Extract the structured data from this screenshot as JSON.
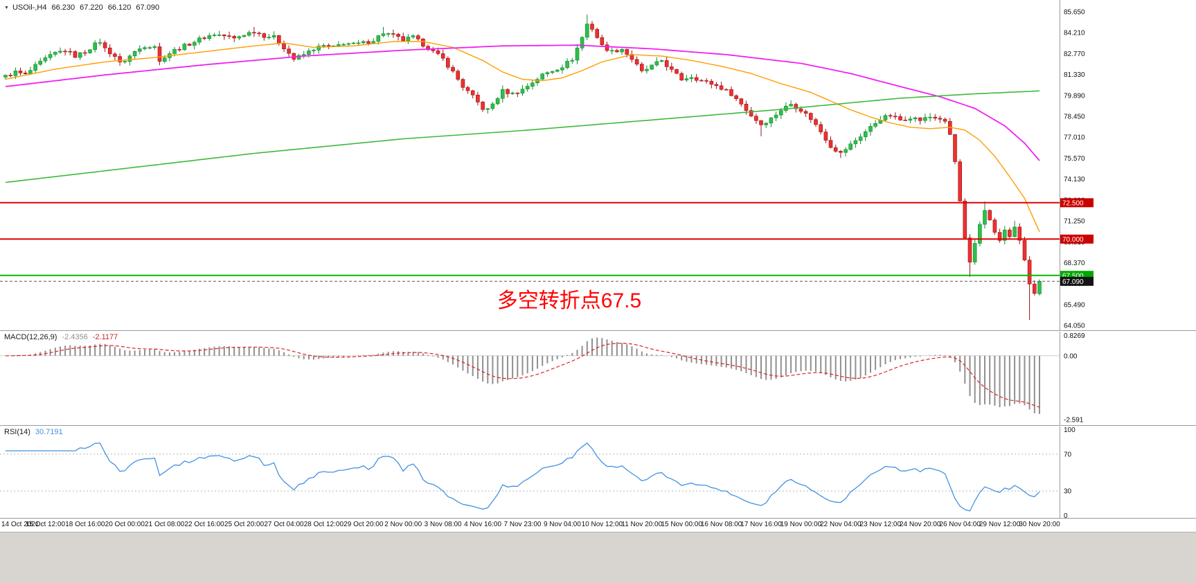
{
  "header": {
    "collapse_icon": "▼",
    "symbol": "USOil-,H4",
    "open": "66.230",
    "high": "67.220",
    "low": "66.120",
    "close": "67.090"
  },
  "annotation": {
    "text": "多空转折点67.5",
    "color": "#ff0000"
  },
  "colors": {
    "background": "#ffffff",
    "bull": "#2fbe4b",
    "bull_border": "#128a30",
    "bear": "#ee3030",
    "bear_border": "#991111",
    "panel_border": "#9a9a9a",
    "axis_text": "#111111",
    "bottom_strip": "#d8d5d0"
  },
  "price_axis": {
    "labels": [
      "85.650",
      "84.210",
      "82.770",
      "81.330",
      "79.890",
      "78.450",
      "77.010",
      "75.570",
      "74.130",
      "72.690",
      "71.250",
      "69.810",
      "68.370",
      "66.930",
      "65.490",
      "64.050"
    ],
    "badges": [
      {
        "text": "72.500",
        "value": 72.5,
        "bg": "#cc0000",
        "fg": "#ffffff"
      },
      {
        "text": "70.000",
        "value": 70.0,
        "bg": "#cc0000",
        "fg": "#ffffff"
      },
      {
        "text": "67.500",
        "value": 67.5,
        "bg": "#00a800",
        "fg": "#ffffff"
      },
      {
        "text": "67.090",
        "value": 67.09,
        "bg": "#141414",
        "fg": "#ffffff"
      }
    ]
  },
  "time_axis": {
    "labels": [
      "14 Oct 2021",
      "15 Oct 12:00",
      "18 Oct 16:00",
      "20 Oct 00:00",
      "21 Oct 08:00",
      "22 Oct 16:00",
      "25 Oct 20:00",
      "27 Oct 04:00",
      "28 Oct 12:00",
      "29 Oct 20:00",
      "2 Nov 00:00",
      "3 Nov 08:00",
      "4 Nov 16:00",
      "7 Nov 23:00",
      "9 Nov 04:00",
      "10 Nov 12:00",
      "11 Nov 20:00",
      "15 Nov 00:00",
      "16 Nov 08:00",
      "17 Nov 16:00",
      "19 Nov 00:00",
      "22 Nov 04:00",
      "23 Nov 12:00",
      "24 Nov 20:00",
      "26 Nov 04:00",
      "29 Nov 12:00",
      "30 Nov 20:00"
    ]
  },
  "chart_data": {
    "type": "candlestick",
    "symbol": "USOil-",
    "timeframe": "H4",
    "title": "USOil-,H4 66.230 67.220 66.120 67.090",
    "current_ohlc": {
      "open": 66.23,
      "high": 67.22,
      "low": 66.12,
      "close": 67.09
    },
    "price_range": [
      63.72,
      86.46
    ],
    "horizontal_lines": [
      {
        "value": 72.5,
        "color": "#dd0000"
      },
      {
        "value": 70.0,
        "color": "#dd0000"
      },
      {
        "value": 67.5,
        "color": "#00bb00"
      }
    ],
    "current_price_line": {
      "value": 67.09,
      "color": "#555555"
    },
    "candles": {
      "count": 209,
      "close_waypoints": [
        [
          0,
          81.2
        ],
        [
          2,
          81.5
        ],
        [
          4,
          81.3
        ],
        [
          6,
          81.9
        ],
        [
          8,
          82.4
        ],
        [
          10,
          82.8
        ],
        [
          12,
          83.0
        ],
        [
          14,
          82.6
        ],
        [
          16,
          82.9
        ],
        [
          18,
          83.4
        ],
        [
          19,
          83.6
        ],
        [
          20,
          83.1
        ],
        [
          22,
          82.6
        ],
        [
          23,
          82.1
        ],
        [
          24,
          82.3
        ],
        [
          26,
          82.9
        ],
        [
          28,
          83.3
        ],
        [
          30,
          83.3
        ],
        [
          31,
          82.2
        ],
        [
          32,
          82.6
        ],
        [
          34,
          83.0
        ],
        [
          36,
          83.3
        ],
        [
          38,
          83.6
        ],
        [
          40,
          83.9
        ],
        [
          42,
          84.1
        ],
        [
          44,
          84.0
        ],
        [
          46,
          83.8
        ],
        [
          48,
          84.1
        ],
        [
          50,
          84.3
        ],
        [
          52,
          84.0
        ],
        [
          54,
          83.9
        ],
        [
          56,
          83.2
        ],
        [
          58,
          82.4
        ],
        [
          60,
          82.7
        ],
        [
          62,
          83.1
        ],
        [
          64,
          83.3
        ],
        [
          66,
          83.2
        ],
        [
          68,
          83.5
        ],
        [
          70,
          83.4
        ],
        [
          72,
          83.5
        ],
        [
          74,
          83.7
        ],
        [
          76,
          84.2
        ],
        [
          78,
          84.0
        ],
        [
          80,
          83.7
        ],
        [
          82,
          83.9
        ],
        [
          84,
          83.4
        ],
        [
          86,
          82.9
        ],
        [
          88,
          82.4
        ],
        [
          90,
          81.5
        ],
        [
          92,
          80.5
        ],
        [
          94,
          79.8
        ],
        [
          96,
          79.0
        ],
        [
          97,
          78.9
        ],
        [
          98,
          79.3
        ],
        [
          100,
          80.2
        ],
        [
          102,
          80.0
        ],
        [
          104,
          80.3
        ],
        [
          106,
          80.8
        ],
        [
          108,
          81.3
        ],
        [
          110,
          81.6
        ],
        [
          112,
          81.9
        ],
        [
          114,
          82.4
        ],
        [
          116,
          83.9
        ],
        [
          117,
          84.8
        ],
        [
          118,
          84.5
        ],
        [
          119,
          83.9
        ],
        [
          120,
          83.3
        ],
        [
          122,
          82.9
        ],
        [
          124,
          83.1
        ],
        [
          126,
          82.4
        ],
        [
          128,
          81.5
        ],
        [
          130,
          81.9
        ],
        [
          132,
          82.3
        ],
        [
          134,
          81.6
        ],
        [
          136,
          81.0
        ],
        [
          138,
          81.2
        ],
        [
          140,
          80.9
        ],
        [
          142,
          80.7
        ],
        [
          144,
          80.4
        ],
        [
          146,
          80.0
        ],
        [
          148,
          79.3
        ],
        [
          150,
          78.5
        ],
        [
          152,
          77.9
        ],
        [
          154,
          78.3
        ],
        [
          156,
          78.9
        ],
        [
          158,
          79.3
        ],
        [
          160,
          78.9
        ],
        [
          162,
          78.3
        ],
        [
          164,
          77.4
        ],
        [
          166,
          76.4
        ],
        [
          168,
          75.9
        ],
        [
          170,
          76.5
        ],
        [
          172,
          77.1
        ],
        [
          174,
          77.7
        ],
        [
          176,
          78.3
        ],
        [
          178,
          78.5
        ],
        [
          180,
          78.2
        ],
        [
          182,
          78.4
        ],
        [
          184,
          78.2
        ],
        [
          186,
          78.4
        ],
        [
          188,
          78.3
        ],
        [
          189,
          78.0
        ],
        [
          190,
          77.2
        ],
        [
          191,
          75.3
        ],
        [
          192,
          72.6
        ],
        [
          193,
          70.0
        ],
        [
          194,
          68.3
        ],
        [
          195,
          69.6
        ],
        [
          196,
          71.0
        ],
        [
          197,
          72.0
        ],
        [
          198,
          71.4
        ],
        [
          199,
          70.4
        ],
        [
          200,
          69.9
        ],
        [
          201,
          70.6
        ],
        [
          202,
          70.1
        ],
        [
          203,
          70.9
        ],
        [
          204,
          69.8
        ],
        [
          205,
          68.6
        ],
        [
          206,
          66.9
        ],
        [
          207,
          66.2
        ],
        [
          208,
          67.09
        ]
      ],
      "overrides": {
        "50": {
          "h": 84.6
        },
        "76": {
          "h": 84.6
        },
        "117": {
          "h": 85.45
        },
        "152": {
          "l": 77.08
        },
        "168": {
          "l": 75.58
        },
        "194": {
          "l": 67.4
        },
        "197": {
          "h": 72.6
        },
        "203": {
          "h": 71.25
        },
        "206": {
          "l": 64.43
        },
        "208": {
          "o": 66.23,
          "h": 67.22,
          "l": 66.12,
          "c": 67.09
        }
      }
    },
    "moving_averages": [
      {
        "name": "ma-fast-orange",
        "color": "#ff9d00",
        "width": 1.4,
        "waypoints": [
          [
            0,
            81.0
          ],
          [
            10,
            81.7
          ],
          [
            20,
            82.2
          ],
          [
            30,
            82.5
          ],
          [
            40,
            82.9
          ],
          [
            50,
            83.3
          ],
          [
            56,
            83.5
          ],
          [
            62,
            83.2
          ],
          [
            70,
            83.3
          ],
          [
            78,
            83.6
          ],
          [
            84,
            83.6
          ],
          [
            90,
            83.2
          ],
          [
            96,
            82.3
          ],
          [
            100,
            81.5
          ],
          [
            104,
            81.0
          ],
          [
            108,
            80.9
          ],
          [
            112,
            81.1
          ],
          [
            116,
            81.6
          ],
          [
            120,
            82.2
          ],
          [
            126,
            82.7
          ],
          [
            132,
            82.6
          ],
          [
            138,
            82.3
          ],
          [
            144,
            81.9
          ],
          [
            150,
            81.4
          ],
          [
            156,
            80.7
          ],
          [
            162,
            80.1
          ],
          [
            166,
            79.5
          ],
          [
            170,
            78.9
          ],
          [
            174,
            78.4
          ],
          [
            178,
            78.0
          ],
          [
            182,
            77.7
          ],
          [
            186,
            77.6
          ],
          [
            190,
            77.7
          ],
          [
            193,
            77.5
          ],
          [
            196,
            76.8
          ],
          [
            199,
            75.7
          ],
          [
            202,
            74.3
          ],
          [
            205,
            72.8
          ],
          [
            208,
            70.5
          ]
        ]
      },
      {
        "name": "ma-mid-magenta",
        "color": "#f020f0",
        "width": 1.8,
        "waypoints": [
          [
            0,
            80.5
          ],
          [
            20,
            81.3
          ],
          [
            40,
            82.0
          ],
          [
            60,
            82.6
          ],
          [
            80,
            83.0
          ],
          [
            100,
            83.3
          ],
          [
            115,
            83.35
          ],
          [
            130,
            83.1
          ],
          [
            145,
            82.7
          ],
          [
            160,
            82.1
          ],
          [
            170,
            81.4
          ],
          [
            180,
            80.5
          ],
          [
            188,
            79.8
          ],
          [
            195,
            79.0
          ],
          [
            201,
            77.8
          ],
          [
            205,
            76.6
          ],
          [
            208,
            75.4
          ]
        ]
      },
      {
        "name": "ma-slow-green",
        "color": "#3cb93c",
        "width": 1.6,
        "waypoints": [
          [
            0,
            73.9
          ],
          [
            25,
            74.9
          ],
          [
            50,
            75.9
          ],
          [
            80,
            76.9
          ],
          [
            105,
            77.5
          ],
          [
            130,
            78.2
          ],
          [
            155,
            78.9
          ],
          [
            180,
            79.7
          ],
          [
            195,
            80.0
          ],
          [
            208,
            80.2
          ]
        ]
      }
    ],
    "macd": {
      "label": "MACD(12,26,9)",
      "main_str": "-2.4356",
      "signal_str": "-2.1177",
      "main": -2.4356,
      "signal": -2.1177,
      "fast": 12,
      "slow": 26,
      "signal_period": 9,
      "axis": [
        {
          "text": "0.8269",
          "value": 0.8269
        },
        {
          "text": "0.00",
          "value": 0
        },
        {
          "text": "-2.591",
          "value": -2.591
        }
      ],
      "display_range": [
        -2.85,
        0.98
      ],
      "histogram_color": "#8f8f8f",
      "signal_color": "#dd2222"
    },
    "rsi": {
      "label": "RSI(14)",
      "value_str": "30.7191",
      "value": 30.7191,
      "period": 14,
      "axis": [
        {
          "text": "100",
          "value": 100
        },
        {
          "text": "70",
          "value": 70
        },
        {
          "text": "30",
          "value": 30
        },
        {
          "text": "0",
          "value": 0
        }
      ],
      "levels": [
        70,
        30
      ],
      "line_color": "#4191e1"
    }
  }
}
